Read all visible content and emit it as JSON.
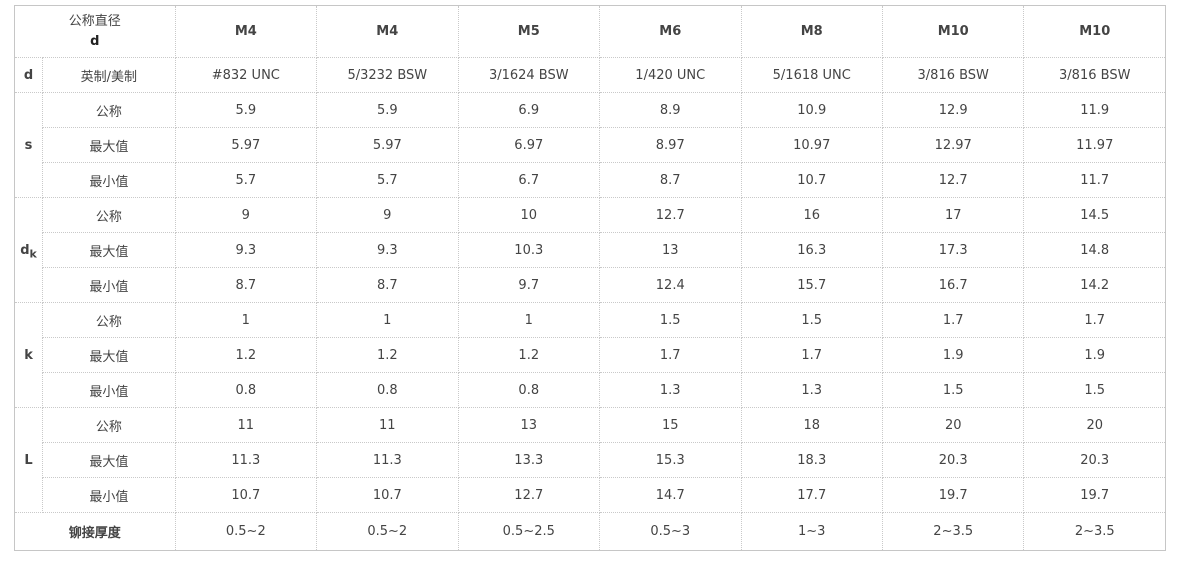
{
  "palette": {
    "header_blue": "#0c55a5",
    "corner_bg": "#e3e3e3",
    "column_header_bg": "#f5f5f5",
    "riveting_label_bg": "#f4f4f4",
    "border_color": "#c9c9c9",
    "text_color": "#444444"
  },
  "table": {
    "corner": {
      "title": "公称直径",
      "subtitle": "d"
    },
    "columns": [
      "M4",
      "M4",
      "M5",
      "M6",
      "M8",
      "M10",
      "M10"
    ],
    "imperial": {
      "group": "d",
      "label": "英制/美制",
      "values": [
        "#832 UNC",
        "5/3232 BSW",
        "3/1624 BSW",
        "1/420 UNC",
        "5/1618 UNC",
        "3/816 BSW",
        "3/816 BSW"
      ]
    },
    "groups": [
      {
        "base": "s",
        "sub": "",
        "rows": [
          {
            "label": "公称",
            "values": [
              "5.9",
              "5.9",
              "6.9",
              "8.9",
              "10.9",
              "12.9",
              "11.9"
            ]
          },
          {
            "label": "最大值",
            "values": [
              "5.97",
              "5.97",
              "6.97",
              "8.97",
              "10.97",
              "12.97",
              "11.97"
            ]
          },
          {
            "label": "最小值",
            "values": [
              "5.7",
              "5.7",
              "6.7",
              "8.7",
              "10.7",
              "12.7",
              "11.7"
            ]
          }
        ]
      },
      {
        "base": "d",
        "sub": "k",
        "rows": [
          {
            "label": "公称",
            "values": [
              "9",
              "9",
              "10",
              "12.7",
              "16",
              "17",
              "14.5"
            ]
          },
          {
            "label": "最大值",
            "values": [
              "9.3",
              "9.3",
              "10.3",
              "13",
              "16.3",
              "17.3",
              "14.8"
            ]
          },
          {
            "label": "最小值",
            "values": [
              "8.7",
              "8.7",
              "9.7",
              "12.4",
              "15.7",
              "16.7",
              "14.2"
            ]
          }
        ]
      },
      {
        "base": "k",
        "sub": "",
        "rows": [
          {
            "label": "公称",
            "values": [
              "1",
              "1",
              "1",
              "1.5",
              "1.5",
              "1.7",
              "1.7"
            ]
          },
          {
            "label": "最大值",
            "values": [
              "1.2",
              "1.2",
              "1.2",
              "1.7",
              "1.7",
              "1.9",
              "1.9"
            ]
          },
          {
            "label": "最小值",
            "values": [
              "0.8",
              "0.8",
              "0.8",
              "1.3",
              "1.3",
              "1.5",
              "1.5"
            ]
          }
        ]
      },
      {
        "base": "L",
        "sub": "",
        "rows": [
          {
            "label": "公称",
            "values": [
              "11",
              "11",
              "13",
              "15",
              "18",
              "20",
              "20"
            ]
          },
          {
            "label": "最大值",
            "values": [
              "11.3",
              "11.3",
              "13.3",
              "15.3",
              "18.3",
              "20.3",
              "20.3"
            ]
          },
          {
            "label": "最小值",
            "values": [
              "10.7",
              "10.7",
              "12.7",
              "14.7",
              "17.7",
              "19.7",
              "19.7"
            ]
          }
        ]
      }
    ],
    "riveting": {
      "label": "铆接厚度",
      "values": [
        "0.5~2",
        "0.5~2",
        "0.5~2.5",
        "0.5~3",
        "1~3",
        "2~3.5",
        "2~3.5"
      ]
    }
  }
}
